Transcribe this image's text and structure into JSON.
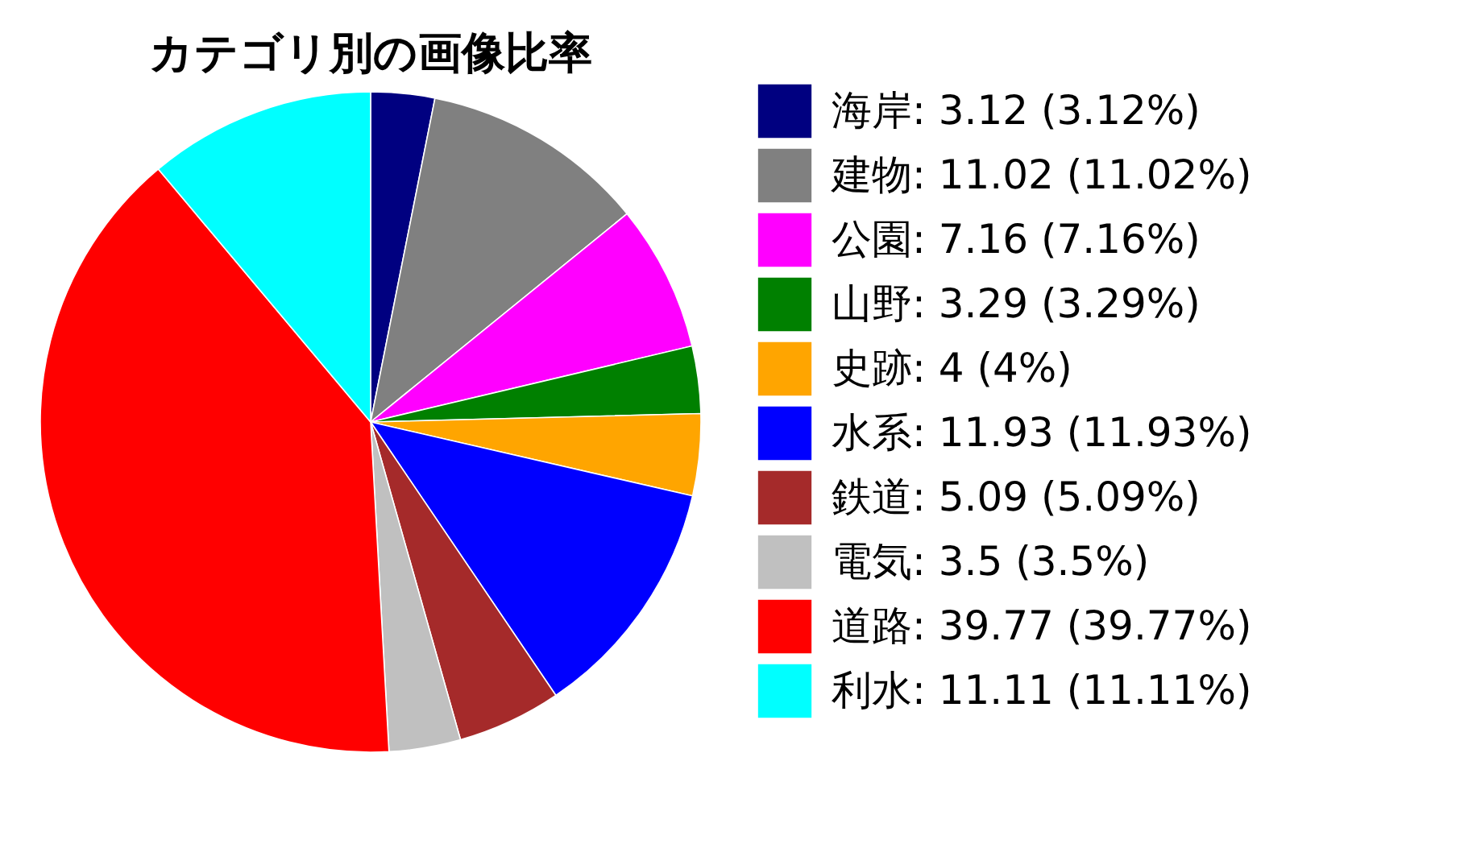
{
  "chart_data": {
    "type": "pie",
    "title": "カテゴリ別の画像比率",
    "categories": [
      "海岸",
      "建物",
      "公園",
      "山野",
      "史跡",
      "水系",
      "鉄道",
      "電気",
      "道路",
      "利水"
    ],
    "values": [
      3.12,
      11.02,
      7.16,
      3.29,
      4,
      11.93,
      5.09,
      3.5,
      39.77,
      11.11
    ],
    "value_labels": [
      "3.12 (3.12%)",
      "11.02 (11.02%)",
      "7.16 (7.16%)",
      "3.29 (3.29%)",
      "4 (4%)",
      "11.93 (11.93%)",
      "5.09 (5.09%)",
      "3.5 (3.5%)",
      "39.77 (39.77%)",
      "11.11 (11.11%)"
    ],
    "colors": [
      "#000080",
      "#808080",
      "#ff00ff",
      "#008000",
      "#ffa500",
      "#0000ff",
      "#a52a2a",
      "#c0c0c0",
      "#ff0000",
      "#00ffff"
    ],
    "legend": "right"
  }
}
